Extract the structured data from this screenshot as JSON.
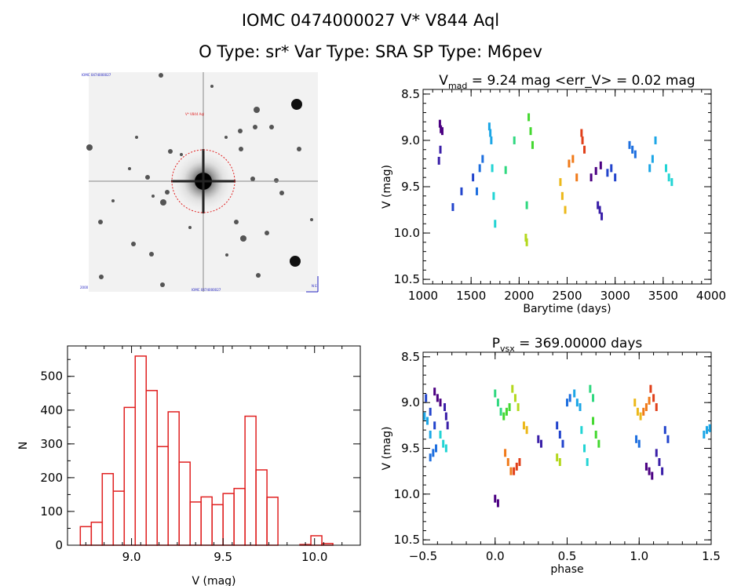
{
  "header": {
    "title_line1": "IOMC 0474000027    V* V844 Aql",
    "title_line2": "O Type: sr*   Var Type: SRA   SP Type: M6pev"
  },
  "colors": {
    "hist_bar": "#e02020",
    "circle": "#e02020",
    "series_palette": [
      "#4b0082",
      "#3a1fa8",
      "#2244cc",
      "#1e6fdf",
      "#1ca6e6",
      "#22d4d4",
      "#30d880",
      "#44d830",
      "#b4d81e",
      "#ecb81a",
      "#f07a1a",
      "#e0401a"
    ]
  },
  "image_panel": {
    "top_left": "IOMC 0474000027",
    "object_label": "V* V844 Aql",
    "bottom_left": "2000",
    "bottom_center": "IOMC 0474000027",
    "bottom_right": "N E"
  },
  "chart_data": [
    {
      "type": "scatter",
      "title": "V_mad = 9.24 mag <err_V> = 0.02 mag",
      "title_parts": {
        "v": "V",
        "sub": "mad",
        "rest": " = 9.24 mag <err_V> = 0.02 mag"
      },
      "xlabel": "Barytime (days)",
      "ylabel": "V (mag)",
      "xlim": [
        1000,
        4000
      ],
      "ylim": [
        10.55,
        8.45
      ],
      "xticks": [
        1000,
        1500,
        2000,
        2500,
        3000,
        3500,
        4000
      ],
      "yticks": [
        "8.5",
        "9.0",
        "9.5",
        "10.0",
        "10.5"
      ],
      "series": [
        {
          "x": [
            1175,
            1185,
            1200
          ],
          "y": [
            8.82,
            8.88,
            8.9
          ]
        },
        {
          "x": [
            1165,
            1180
          ],
          "y": [
            9.22,
            9.1
          ]
        },
        {
          "x": [
            1310,
            1400,
            1520
          ],
          "y": [
            9.72,
            9.55,
            9.4
          ]
        },
        {
          "x": [
            1560,
            1590,
            1620
          ],
          "y": [
            9.55,
            9.3,
            9.2
          ]
        },
        {
          "x": [
            1690,
            1700,
            1710
          ],
          "y": [
            8.85,
            8.92,
            9.0
          ]
        },
        {
          "x": [
            1720,
            1735,
            1750
          ],
          "y": [
            9.3,
            9.6,
            9.9
          ]
        },
        {
          "x": [
            1860,
            1950,
            2080
          ],
          "y": [
            9.32,
            9.0,
            9.7
          ]
        },
        {
          "x": [
            2100,
            2120,
            2140
          ],
          "y": [
            8.75,
            8.9,
            9.05
          ]
        },
        {
          "x": [
            2070,
            2080
          ],
          "y": [
            10.05,
            10.1
          ]
        },
        {
          "x": [
            2430,
            2450,
            2480
          ],
          "y": [
            9.45,
            9.6,
            9.75
          ]
        },
        {
          "x": [
            2520,
            2560,
            2600
          ],
          "y": [
            9.25,
            9.2,
            9.4
          ]
        },
        {
          "x": [
            2650,
            2660,
            2680
          ],
          "y": [
            8.92,
            9.0,
            9.1
          ]
        },
        {
          "x": [
            2750,
            2800,
            2850
          ],
          "y": [
            9.4,
            9.33,
            9.27
          ]
        },
        {
          "x": [
            2820,
            2840,
            2860
          ],
          "y": [
            9.7,
            9.75,
            9.82
          ]
        },
        {
          "x": [
            2920,
            2960,
            3000
          ],
          "y": [
            9.35,
            9.3,
            9.4
          ]
        },
        {
          "x": [
            3150,
            3180,
            3210
          ],
          "y": [
            9.05,
            9.1,
            9.15
          ]
        },
        {
          "x": [
            3360,
            3390,
            3420
          ],
          "y": [
            9.3,
            9.2,
            9.0
          ]
        },
        {
          "x": [
            3530,
            3560,
            3590
          ],
          "y": [
            9.3,
            9.4,
            9.45
          ]
        }
      ]
    },
    {
      "type": "bar",
      "title": "",
      "xlabel": "V (mag)",
      "ylabel": "N",
      "xlim": [
        8.65,
        10.25
      ],
      "ylim": [
        0,
        590
      ],
      "xticks": [
        "9.0",
        "9.5",
        "10.0"
      ],
      "yticks": [
        "0",
        "100",
        "200",
        "300",
        "400",
        "500"
      ],
      "bin_width": 0.06,
      "bin_starts": [
        8.72,
        8.78,
        8.84,
        8.9,
        8.96,
        9.02,
        9.08,
        9.14,
        9.2,
        9.26,
        9.32,
        9.38,
        9.44,
        9.5,
        9.56,
        9.62,
        9.68,
        9.74,
        9.8,
        9.86,
        9.92,
        9.98,
        10.04,
        10.1
      ],
      "values": [
        55,
        68,
        212,
        160,
        408,
        560,
        458,
        292,
        395,
        246,
        128,
        143,
        120,
        153,
        168,
        382,
        223,
        142,
        0,
        0,
        2,
        28,
        5,
        0
      ]
    },
    {
      "type": "scatter",
      "title": "P_vsx = 369.00000 days",
      "title_parts": {
        "v": "P",
        "sub": "vsx",
        "rest": " = 369.00000 days"
      },
      "xlabel": "phase",
      "ylabel": "V (mag)",
      "xlim": [
        -0.5,
        1.5
      ],
      "ylim": [
        10.55,
        8.45
      ],
      "xticks": [
        "−0.5",
        "0.0",
        "0.5",
        "1.0",
        "1.5"
      ],
      "yticks": [
        "8.5",
        "9.0",
        "9.5",
        "10.0",
        "10.5"
      ],
      "series": [
        {
          "x": [
            -0.42,
            -0.4,
            -0.38
          ],
          "y": [
            8.88,
            8.95,
            9.0
          ]
        },
        {
          "x": [
            -0.35,
            -0.34,
            -0.33
          ],
          "y": [
            9.05,
            9.15,
            9.25
          ]
        },
        {
          "x": [
            -0.48,
            -0.45,
            -0.42
          ],
          "y": [
            8.95,
            9.1,
            9.25
          ]
        },
        {
          "x": [
            -0.45,
            -0.43,
            -0.41
          ],
          "y": [
            9.6,
            9.55,
            9.5
          ]
        },
        {
          "x": [
            -0.49,
            -0.47,
            -0.45
          ],
          "y": [
            9.15,
            9.2,
            9.35
          ]
        },
        {
          "x": [
            -0.38,
            -0.36,
            -0.34
          ],
          "y": [
            9.35,
            9.45,
            9.5
          ]
        },
        {
          "x": [
            0.0,
            0.02,
            0.04
          ],
          "y": [
            8.9,
            9.0,
            9.1
          ]
        },
        {
          "x": [
            0.06,
            0.08,
            0.1
          ],
          "y": [
            9.15,
            9.1,
            9.05
          ]
        },
        {
          "x": [
            0.12,
            0.14,
            0.16
          ],
          "y": [
            8.85,
            8.95,
            9.05
          ]
        },
        {
          "x": [
            0.2,
            0.22
          ],
          "y": [
            9.25,
            9.3
          ]
        },
        {
          "x": [
            0.07,
            0.09,
            0.11
          ],
          "y": [
            9.55,
            9.65,
            9.75
          ]
        },
        {
          "x": [
            0.13,
            0.15,
            0.17
          ],
          "y": [
            9.75,
            9.7,
            9.65
          ]
        },
        {
          "x": [
            0.0,
            0.02
          ],
          "y": [
            10.05,
            10.1
          ]
        },
        {
          "x": [
            0.3,
            0.32
          ],
          "y": [
            9.4,
            9.45
          ]
        },
        {
          "x": [
            0.43,
            0.45,
            0.47
          ],
          "y": [
            9.25,
            9.35,
            9.45
          ]
        },
        {
          "x": [
            0.5,
            0.52
          ],
          "y": [
            9.0,
            8.95
          ]
        },
        {
          "x": [
            0.55,
            0.57,
            0.59
          ],
          "y": [
            8.9,
            9.0,
            9.05
          ]
        },
        {
          "x": [
            0.6,
            0.62,
            0.64
          ],
          "y": [
            9.3,
            9.5,
            9.65
          ]
        },
        {
          "x": [
            0.66,
            0.68
          ],
          "y": [
            8.85,
            8.95
          ]
        },
        {
          "x": [
            0.68,
            0.7,
            0.72
          ],
          "y": [
            9.2,
            9.35,
            9.45
          ]
        },
        {
          "x": [
            0.43,
            0.45
          ],
          "y": [
            9.6,
            9.65
          ]
        },
        {
          "x": [
            0.97,
            0.99,
            1.01
          ],
          "y": [
            9.0,
            9.1,
            9.15
          ]
        },
        {
          "x": [
            1.03,
            1.05,
            1.07
          ],
          "y": [
            9.1,
            9.05,
            8.98
          ]
        },
        {
          "x": [
            1.08,
            1.1,
            1.12
          ],
          "y": [
            8.85,
            8.95,
            9.05
          ]
        },
        {
          "x": [
            1.05,
            1.07,
            1.09
          ],
          "y": [
            9.7,
            9.75,
            9.8
          ]
        },
        {
          "x": [
            1.12,
            1.14,
            1.16
          ],
          "y": [
            9.55,
            9.65,
            9.75
          ]
        },
        {
          "x": [
            1.18,
            1.2
          ],
          "y": [
            9.3,
            9.4
          ]
        },
        {
          "x": [
            0.98,
            1.0
          ],
          "y": [
            9.4,
            9.45
          ]
        },
        {
          "x": [
            1.45,
            1.47,
            1.49
          ],
          "y": [
            9.35,
            9.3,
            9.28
          ]
        }
      ]
    }
  ]
}
